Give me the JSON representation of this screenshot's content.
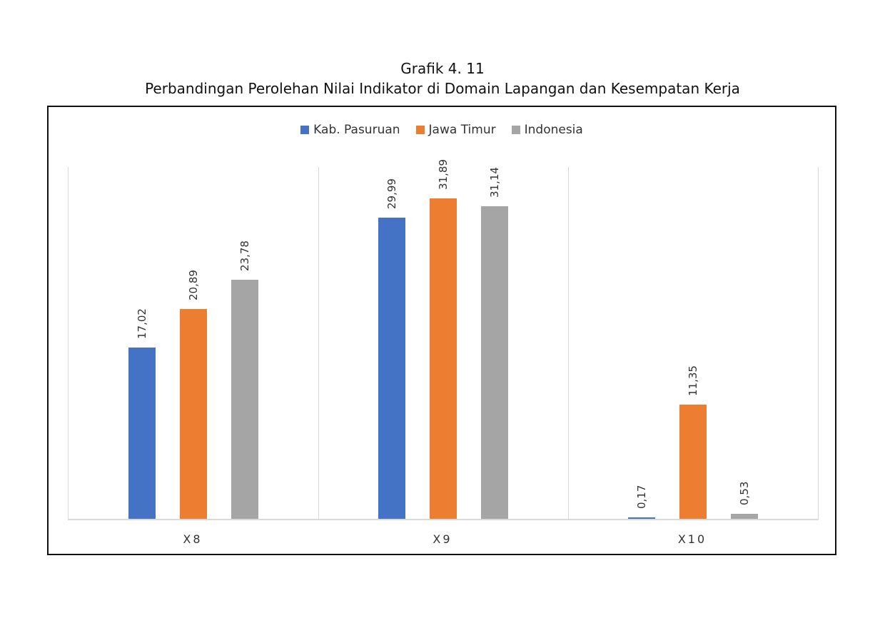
{
  "title": {
    "line1": "Grafik 4. 11",
    "line2": "Perbandingan Perolehan Nilai Indikator di Domain Lapangan dan Kesempatan Kerja"
  },
  "legend": [
    {
      "label": "Kab. Pasuruan",
      "color": "#4472C4"
    },
    {
      "label": "Jawa Timur",
      "color": "#ED7D31"
    },
    {
      "label": "Indonesia",
      "color": "#A5A5A5"
    }
  ],
  "categories_display": [
    "X8",
    "X9",
    "X10"
  ],
  "value_labels": {
    "X8": [
      "17,02",
      "20,89",
      "23,78"
    ],
    "X9": [
      "29,99",
      "31,89",
      "31,14"
    ],
    "X10": [
      "0,17",
      "11,35",
      "0,53"
    ]
  },
  "chart_data": {
    "type": "bar",
    "title": "Grafik 4. 11 — Perbandingan Perolehan Nilai Indikator di Domain Lapangan dan Kesempatan Kerja",
    "categories": [
      "X8",
      "X9",
      "X10"
    ],
    "series": [
      {
        "name": "Kab. Pasuruan",
        "color": "#4472C4",
        "values": [
          17.02,
          29.99,
          0.17
        ]
      },
      {
        "name": "Jawa Timur",
        "color": "#ED7D31",
        "values": [
          20.89,
          31.89,
          11.35
        ]
      },
      {
        "name": "Indonesia",
        "color": "#A5A5A5",
        "values": [
          23.78,
          31.14,
          0.53
        ]
      }
    ],
    "xlabel": "",
    "ylabel": "",
    "ylim": [
      0,
      35
    ],
    "y_axis_visible": false,
    "data_labels": true,
    "data_label_format": "decimal comma, rotated vertical",
    "grid": "vertical category separators only",
    "legend_position": "top"
  }
}
